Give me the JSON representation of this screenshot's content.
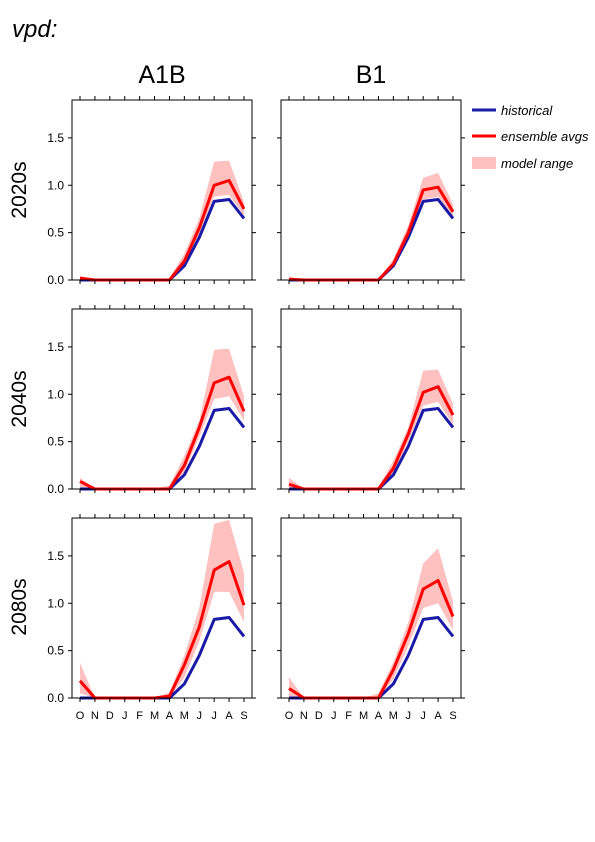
{
  "page_title": "vpd:",
  "columns": [
    "A1B",
    "B1"
  ],
  "rows": [
    "2020s",
    "2040s",
    "2080s"
  ],
  "legend": {
    "historical": "historical",
    "ensemble": "ensemble avgs",
    "range": "model range"
  },
  "colors": {
    "historical": "#1a1aa6",
    "ensemble": "#ff0000",
    "range": "#ffc0c0"
  },
  "chart_data": {
    "type": "line",
    "categories": [
      "O",
      "N",
      "D",
      "J",
      "F",
      "M",
      "A",
      "M",
      "J",
      "J",
      "A",
      "S"
    ],
    "ylim": [
      0,
      1.9
    ],
    "yticks": [
      "0.0",
      "0.5",
      "1.0",
      "1.5"
    ],
    "ytick_values": [
      0,
      0.5,
      1.0,
      1.5
    ],
    "historical": [
      0.0,
      0.0,
      0.0,
      0.0,
      0.0,
      0.0,
      0.0,
      0.15,
      0.45,
      0.83,
      0.85,
      0.65
    ],
    "panels": [
      {
        "row": "2020s",
        "column": "A1B",
        "ensemble": [
          0.02,
          0.0,
          0.0,
          0.0,
          0.0,
          0.0,
          0.0,
          0.2,
          0.55,
          1.0,
          1.05,
          0.75
        ],
        "range_low": [
          0.0,
          0.0,
          0.0,
          0.0,
          0.0,
          0.0,
          0.0,
          0.15,
          0.48,
          0.88,
          0.9,
          0.68
        ],
        "range_high": [
          0.04,
          0.0,
          0.0,
          0.0,
          0.0,
          0.0,
          0.02,
          0.28,
          0.65,
          1.25,
          1.26,
          0.82
        ]
      },
      {
        "row": "2020s",
        "column": "B1",
        "ensemble": [
          0.01,
          0.0,
          0.0,
          0.0,
          0.0,
          0.0,
          0.0,
          0.17,
          0.5,
          0.95,
          0.98,
          0.72
        ],
        "range_low": [
          0.0,
          0.0,
          0.0,
          0.0,
          0.0,
          0.0,
          0.0,
          0.15,
          0.46,
          0.85,
          0.88,
          0.66
        ],
        "range_high": [
          0.03,
          0.0,
          0.0,
          0.0,
          0.0,
          0.0,
          0.01,
          0.22,
          0.58,
          1.08,
          1.13,
          0.8
        ]
      },
      {
        "row": "2040s",
        "column": "A1B",
        "ensemble": [
          0.08,
          0.0,
          0.0,
          0.0,
          0.0,
          0.0,
          0.0,
          0.25,
          0.65,
          1.12,
          1.18,
          0.82
        ],
        "range_low": [
          0.02,
          0.0,
          0.0,
          0.0,
          0.0,
          0.0,
          0.0,
          0.18,
          0.55,
          0.95,
          0.98,
          0.72
        ],
        "range_high": [
          0.12,
          0.0,
          0.0,
          0.0,
          0.0,
          0.0,
          0.04,
          0.35,
          0.72,
          1.47,
          1.48,
          0.98
        ]
      },
      {
        "row": "2040s",
        "column": "B1",
        "ensemble": [
          0.05,
          0.0,
          0.0,
          0.0,
          0.0,
          0.0,
          0.0,
          0.22,
          0.58,
          1.02,
          1.08,
          0.78
        ],
        "range_low": [
          0.0,
          0.0,
          0.0,
          0.0,
          0.0,
          0.0,
          0.0,
          0.15,
          0.5,
          0.88,
          0.92,
          0.68
        ],
        "range_high": [
          0.12,
          0.0,
          0.0,
          0.0,
          0.0,
          0.0,
          0.02,
          0.3,
          0.65,
          1.25,
          1.26,
          0.9
        ]
      },
      {
        "row": "2080s",
        "column": "A1B",
        "ensemble": [
          0.18,
          0.0,
          0.0,
          0.0,
          0.0,
          0.0,
          0.02,
          0.35,
          0.75,
          1.35,
          1.44,
          0.98
        ],
        "range_low": [
          0.05,
          0.0,
          0.0,
          0.0,
          0.0,
          0.0,
          0.0,
          0.22,
          0.6,
          1.12,
          1.12,
          0.8
        ],
        "range_high": [
          0.37,
          0.0,
          0.0,
          0.0,
          0.0,
          0.0,
          0.06,
          0.45,
          0.95,
          1.84,
          1.88,
          1.32
        ]
      },
      {
        "row": "2080s",
        "column": "B1",
        "ensemble": [
          0.1,
          0.0,
          0.0,
          0.0,
          0.0,
          0.0,
          0.0,
          0.3,
          0.68,
          1.15,
          1.24,
          0.86
        ],
        "range_low": [
          0.02,
          0.0,
          0.0,
          0.0,
          0.0,
          0.0,
          0.0,
          0.2,
          0.55,
          0.95,
          1.0,
          0.72
        ],
        "range_high": [
          0.22,
          0.0,
          0.0,
          0.0,
          0.0,
          0.0,
          0.05,
          0.38,
          0.8,
          1.42,
          1.58,
          1.02
        ]
      }
    ]
  }
}
